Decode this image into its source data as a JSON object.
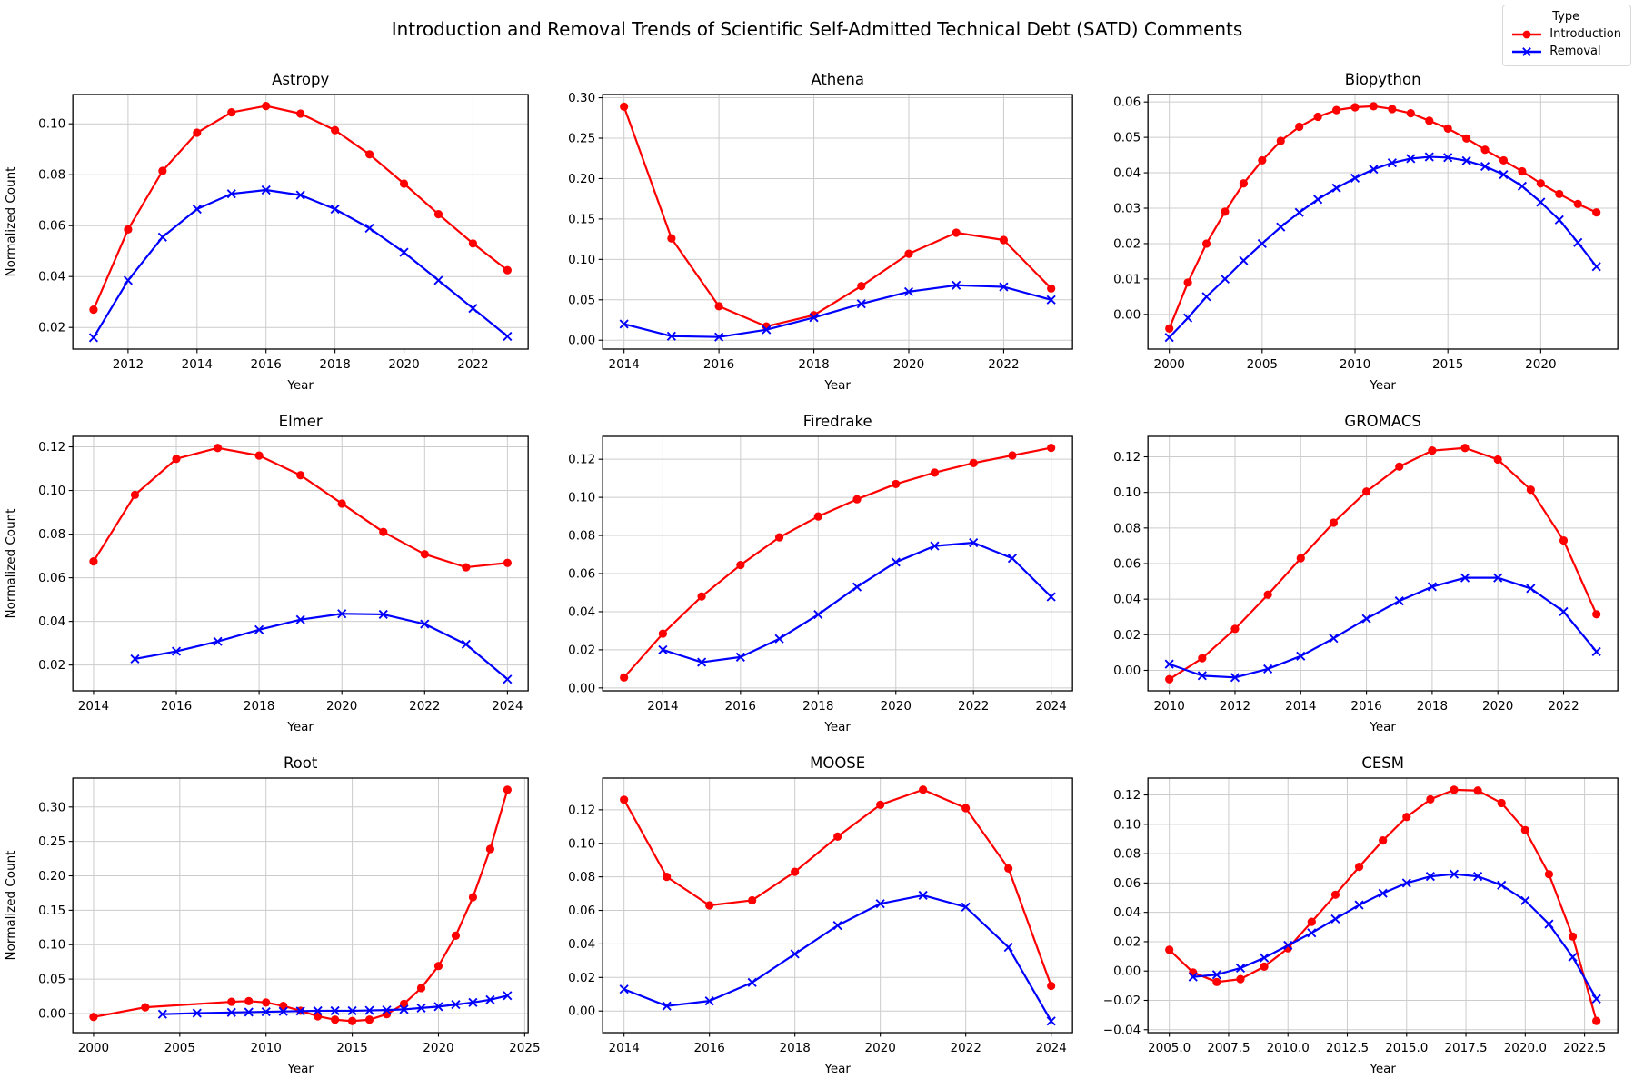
{
  "figure": {
    "title": "Introduction and Removal Trends of Scientific Self-Admitted Technical Debt (SATD) Comments",
    "legend": {
      "title": "Type",
      "entries": [
        {
          "label": "Introduction",
          "color": "#ff0000",
          "marker": "circle"
        },
        {
          "label": "Removal",
          "color": "#0000ff",
          "marker": "x"
        }
      ]
    },
    "colors": {
      "introduction": "#ff0000",
      "removal": "#0000ff",
      "grid": "#cccccc",
      "axis": "#000000"
    }
  },
  "chart_data": [
    {
      "type": "line",
      "title": "Astropy",
      "xlabel": "Year",
      "ylabel": "Normalized Count",
      "xlim": [
        2010.4,
        2023.6
      ],
      "ylim": [
        0.0115,
        0.1115
      ],
      "xticks": [
        2012,
        2014,
        2016,
        2018,
        2020,
        2022
      ],
      "xtick_labels": [
        "2012",
        "2014",
        "2016",
        "2018",
        "2020",
        "2022"
      ],
      "yticks": [
        0.02,
        0.04,
        0.06,
        0.08,
        0.1
      ],
      "ytick_labels": [
        "0.02",
        "0.04",
        "0.06",
        "0.08",
        "0.10"
      ],
      "grid": true,
      "legend_position": "figure-top-right",
      "series": [
        {
          "name": "Introduction",
          "marker": "circle",
          "x": [
            2011,
            2012,
            2013,
            2014,
            2015,
            2016,
            2017,
            2018,
            2019,
            2020,
            2021,
            2022,
            2023
          ],
          "y": [
            0.027,
            0.0585,
            0.0815,
            0.0965,
            0.1045,
            0.107,
            0.104,
            0.0975,
            0.088,
            0.0765,
            0.0645,
            0.053,
            0.0425
          ]
        },
        {
          "name": "Removal",
          "marker": "x",
          "x": [
            2011,
            2012,
            2013,
            2014,
            2015,
            2016,
            2017,
            2018,
            2019,
            2020,
            2021,
            2022,
            2023
          ],
          "y": [
            0.016,
            0.0385,
            0.0555,
            0.0665,
            0.0725,
            0.074,
            0.072,
            0.0665,
            0.059,
            0.0495,
            0.0385,
            0.0275,
            0.0165
          ]
        }
      ]
    },
    {
      "type": "line",
      "title": "Athena",
      "xlabel": "Year",
      "ylabel": "",
      "xlim": [
        2013.55,
        2023.45
      ],
      "ylim": [
        -0.011,
        0.304
      ],
      "xticks": [
        2014,
        2016,
        2018,
        2020,
        2022
      ],
      "xtick_labels": [
        "2014",
        "2016",
        "2018",
        "2020",
        "2022"
      ],
      "yticks": [
        0.0,
        0.05,
        0.1,
        0.15,
        0.2,
        0.25,
        0.3
      ],
      "ytick_labels": [
        "0.00",
        "0.05",
        "0.10",
        "0.15",
        "0.20",
        "0.25",
        "0.30"
      ],
      "grid": true,
      "series": [
        {
          "name": "Introduction",
          "marker": "circle",
          "x": [
            2014,
            2015,
            2016,
            2017,
            2018,
            2019,
            2020,
            2021,
            2022,
            2023
          ],
          "y": [
            0.289,
            0.126,
            0.042,
            0.017,
            0.031,
            0.067,
            0.107,
            0.133,
            0.124,
            0.064
          ]
        },
        {
          "name": "Removal",
          "marker": "x",
          "x": [
            2014,
            2015,
            2016,
            2017,
            2018,
            2019,
            2020,
            2021,
            2022,
            2023
          ],
          "y": [
            0.02,
            0.005,
            0.004,
            0.013,
            0.028,
            0.045,
            0.06,
            0.068,
            0.066,
            0.05
          ]
        }
      ]
    },
    {
      "type": "line",
      "title": "Biopython",
      "xlabel": "Year",
      "ylabel": "",
      "xlim": [
        1998.85,
        2024.15
      ],
      "ylim": [
        -0.0098,
        0.0621
      ],
      "xticks": [
        2000,
        2005,
        2010,
        2015,
        2020
      ],
      "xtick_labels": [
        "2000",
        "2005",
        "2010",
        "2015",
        "2020"
      ],
      "yticks": [
        0.0,
        0.01,
        0.02,
        0.03,
        0.04,
        0.05,
        0.06
      ],
      "ytick_labels": [
        "0.00",
        "0.01",
        "0.02",
        "0.03",
        "0.04",
        "0.05",
        "0.06"
      ],
      "grid": true,
      "series": [
        {
          "name": "Introduction",
          "marker": "circle",
          "x": [
            2000,
            2001,
            2002,
            2003,
            2004,
            2005,
            2006,
            2007,
            2008,
            2009,
            2010,
            2011,
            2012,
            2013,
            2014,
            2015,
            2016,
            2017,
            2018,
            2019,
            2020,
            2021,
            2022,
            2023
          ],
          "y": [
            -0.004,
            0.009,
            0.02,
            0.029,
            0.037,
            0.0435,
            0.049,
            0.053,
            0.0558,
            0.0577,
            0.0585,
            0.0588,
            0.058,
            0.0568,
            0.0547,
            0.0525,
            0.0497,
            0.0465,
            0.0435,
            0.0404,
            0.037,
            0.034,
            0.0312,
            0.0288
          ]
        },
        {
          "name": "Removal",
          "marker": "x",
          "x": [
            2000,
            2001,
            2002,
            2003,
            2004,
            2005,
            2006,
            2007,
            2008,
            2009,
            2010,
            2011,
            2012,
            2013,
            2014,
            2015,
            2016,
            2017,
            2018,
            2019,
            2020,
            2021,
            2022,
            2023
          ],
          "y": [
            -0.0065,
            -0.001,
            0.005,
            0.01,
            0.0152,
            0.02,
            0.0247,
            0.0288,
            0.0325,
            0.0357,
            0.0385,
            0.041,
            0.0428,
            0.044,
            0.0445,
            0.0443,
            0.0434,
            0.0418,
            0.0395,
            0.0362,
            0.0317,
            0.0267,
            0.0203,
            0.0135
          ]
        }
      ]
    },
    {
      "type": "line",
      "title": "Elmer",
      "xlabel": "Year",
      "ylabel": "Normalized Count",
      "xlim": [
        2013.5,
        2024.5
      ],
      "ylim": [
        0.0082,
        0.1248
      ],
      "xticks": [
        2014,
        2016,
        2018,
        2020,
        2022,
        2024
      ],
      "xtick_labels": [
        "2014",
        "2016",
        "2018",
        "2020",
        "2022",
        "2024"
      ],
      "yticks": [
        0.02,
        0.04,
        0.06,
        0.08,
        0.1,
        0.12
      ],
      "ytick_labels": [
        "0.02",
        "0.04",
        "0.06",
        "0.08",
        "0.10",
        "0.12"
      ],
      "grid": true,
      "series": [
        {
          "name": "Introduction",
          "marker": "circle",
          "x": [
            2014,
            2015,
            2016,
            2017,
            2018,
            2019,
            2020,
            2021,
            2022,
            2023,
            2024
          ],
          "y": [
            0.0675,
            0.098,
            0.1145,
            0.1195,
            0.116,
            0.107,
            0.094,
            0.081,
            0.0708,
            0.0648,
            0.0668
          ]
        },
        {
          "name": "Removal",
          "marker": "x",
          "x": [
            2015,
            2016,
            2017,
            2018,
            2019,
            2020,
            2021,
            2022,
            2023,
            2024
          ],
          "y": [
            0.0228,
            0.0263,
            0.0308,
            0.0362,
            0.0408,
            0.0435,
            0.0432,
            0.0388,
            0.0295,
            0.0135
          ]
        }
      ]
    },
    {
      "type": "line",
      "title": "Firedrake",
      "xlabel": "Year",
      "ylabel": "",
      "xlim": [
        2012.45,
        2024.55
      ],
      "ylim": [
        -0.0015,
        0.132
      ],
      "xticks": [
        2014,
        2016,
        2018,
        2020,
        2022,
        2024
      ],
      "xtick_labels": [
        "2014",
        "2016",
        "2018",
        "2020",
        "2022",
        "2024"
      ],
      "yticks": [
        0.0,
        0.02,
        0.04,
        0.06,
        0.08,
        0.1,
        0.12
      ],
      "ytick_labels": [
        "0.00",
        "0.02",
        "0.04",
        "0.06",
        "0.08",
        "0.10",
        "0.12"
      ],
      "grid": true,
      "series": [
        {
          "name": "Introduction",
          "marker": "circle",
          "x": [
            2013,
            2014,
            2015,
            2016,
            2017,
            2018,
            2019,
            2020,
            2021,
            2022,
            2023,
            2024
          ],
          "y": [
            0.0055,
            0.0285,
            0.048,
            0.0645,
            0.079,
            0.09,
            0.099,
            0.107,
            0.113,
            0.118,
            0.122,
            0.126
          ]
        },
        {
          "name": "Removal",
          "marker": "x",
          "x": [
            2014,
            2015,
            2016,
            2017,
            2018,
            2019,
            2020,
            2021,
            2022,
            2023,
            2024
          ],
          "y": [
            0.02,
            0.0135,
            0.0162,
            0.0258,
            0.0385,
            0.053,
            0.066,
            0.0745,
            0.0762,
            0.068,
            0.0478
          ]
        }
      ]
    },
    {
      "type": "line",
      "title": "GROMACS",
      "xlabel": "Year",
      "ylabel": "",
      "xlim": [
        2009.35,
        2023.65
      ],
      "ylim": [
        -0.0115,
        0.1315
      ],
      "xticks": [
        2010,
        2012,
        2014,
        2016,
        2018,
        2020,
        2022
      ],
      "xtick_labels": [
        "2010",
        "2012",
        "2014",
        "2016",
        "2018",
        "2020",
        "2022"
      ],
      "yticks": [
        0.0,
        0.02,
        0.04,
        0.06,
        0.08,
        0.1,
        0.12
      ],
      "ytick_labels": [
        "0.00",
        "0.02",
        "0.04",
        "0.06",
        "0.08",
        "0.10",
        "0.12"
      ],
      "grid": true,
      "series": [
        {
          "name": "Introduction",
          "marker": "circle",
          "x": [
            2010,
            2011,
            2012,
            2013,
            2014,
            2015,
            2016,
            2017,
            2018,
            2019,
            2020,
            2021,
            2022,
            2023
          ],
          "y": [
            -0.005,
            0.0068,
            0.0233,
            0.0425,
            0.063,
            0.083,
            0.1005,
            0.1145,
            0.1235,
            0.125,
            0.1185,
            0.1015,
            0.073,
            0.0315
          ]
        },
        {
          "name": "Removal",
          "marker": "x",
          "x": [
            2010,
            2011,
            2012,
            2013,
            2014,
            2015,
            2016,
            2017,
            2018,
            2019,
            2020,
            2021,
            2022,
            2023
          ],
          "y": [
            0.0035,
            -0.003,
            -0.004,
            0.0008,
            0.008,
            0.018,
            0.029,
            0.039,
            0.047,
            0.052,
            0.052,
            0.046,
            0.033,
            0.0105
          ]
        }
      ]
    },
    {
      "type": "line",
      "title": "Root",
      "xlabel": "Year",
      "ylabel": "Normalized Count",
      "xlim": [
        1998.8,
        2025.2
      ],
      "ylim": [
        -0.0278,
        0.342
      ],
      "xticks": [
        2000,
        2005,
        2010,
        2015,
        2020,
        2025
      ],
      "xtick_labels": [
        "2000",
        "2005",
        "2010",
        "2015",
        "2020",
        "2025"
      ],
      "yticks": [
        0.0,
        0.05,
        0.1,
        0.15,
        0.2,
        0.25,
        0.3
      ],
      "ytick_labels": [
        "0.00",
        "0.05",
        "0.10",
        "0.15",
        "0.20",
        "0.25",
        "0.30"
      ],
      "grid": true,
      "series": [
        {
          "name": "Introduction",
          "marker": "circle",
          "x": [
            2000,
            2003,
            2008,
            2009,
            2010,
            2011,
            2012,
            2013,
            2014,
            2015,
            2016,
            2017,
            2018,
            2019,
            2020,
            2021,
            2022,
            2023,
            2024
          ],
          "y": [
            -0.005,
            0.009,
            0.017,
            0.018,
            0.016,
            0.011,
            0.004,
            -0.004,
            -0.009,
            -0.011,
            -0.009,
            -0.001,
            0.014,
            0.037,
            0.069,
            0.113,
            0.169,
            0.239,
            0.325
          ]
        },
        {
          "name": "Removal",
          "marker": "x",
          "x": [
            2004,
            2006,
            2008,
            2009,
            2010,
            2011,
            2012,
            2013,
            2014,
            2015,
            2016,
            2017,
            2018,
            2019,
            2020,
            2021,
            2022,
            2023,
            2024
          ],
          "y": [
            -0.001,
            0.0005,
            0.0015,
            0.002,
            0.0025,
            0.003,
            0.0035,
            0.004,
            0.004,
            0.004,
            0.0045,
            0.005,
            0.006,
            0.008,
            0.01,
            0.013,
            0.016,
            0.02,
            0.026
          ]
        }
      ]
    },
    {
      "type": "line",
      "title": "MOOSE",
      "xlabel": "Year",
      "ylabel": "",
      "xlim": [
        2013.5,
        2024.5
      ],
      "ylim": [
        -0.0129,
        0.1389
      ],
      "xticks": [
        2014,
        2016,
        2018,
        2020,
        2022,
        2024
      ],
      "xtick_labels": [
        "2014",
        "2016",
        "2018",
        "2020",
        "2022",
        "2024"
      ],
      "yticks": [
        0.0,
        0.02,
        0.04,
        0.06,
        0.08,
        0.1,
        0.12
      ],
      "ytick_labels": [
        "0.00",
        "0.02",
        "0.04",
        "0.06",
        "0.08",
        "0.10",
        "0.12"
      ],
      "grid": true,
      "series": [
        {
          "name": "Introduction",
          "marker": "circle",
          "x": [
            2014,
            2015,
            2016,
            2017,
            2018,
            2019,
            2020,
            2021,
            2022,
            2023,
            2024
          ],
          "y": [
            0.126,
            0.08,
            0.063,
            0.066,
            0.083,
            0.104,
            0.123,
            0.132,
            0.121,
            0.085,
            0.015
          ]
        },
        {
          "name": "Removal",
          "marker": "x",
          "x": [
            2014,
            2015,
            2016,
            2017,
            2018,
            2019,
            2020,
            2021,
            2022,
            2023,
            2024
          ],
          "y": [
            0.013,
            0.003,
            0.006,
            0.017,
            0.034,
            0.051,
            0.064,
            0.069,
            0.062,
            0.038,
            -0.006
          ]
        }
      ]
    },
    {
      "type": "line",
      "title": "CESM",
      "xlabel": "Year",
      "ylabel": "",
      "xlim": [
        2004.1,
        2023.9
      ],
      "ylim": [
        -0.042,
        0.1315
      ],
      "xticks": [
        2005.0,
        2007.5,
        2010.0,
        2012.5,
        2015.0,
        2017.5,
        2020.0,
        2022.5
      ],
      "xtick_labels": [
        "2005.0",
        "2007.5",
        "2010.0",
        "2012.5",
        "2015.0",
        "2017.5",
        "2020.0",
        "2022.5"
      ],
      "yticks": [
        -0.04,
        -0.02,
        0.0,
        0.02,
        0.04,
        0.06,
        0.08,
        0.1,
        0.12
      ],
      "ytick_labels": [
        "−0.04",
        "−0.02",
        "0.00",
        "0.02",
        "0.04",
        "0.06",
        "0.08",
        "0.10",
        "0.12"
      ],
      "grid": true,
      "series": [
        {
          "name": "Introduction",
          "marker": "circle",
          "x": [
            2005,
            2006,
            2007,
            2008,
            2009,
            2010,
            2011,
            2012,
            2013,
            2014,
            2015,
            2016,
            2017,
            2018,
            2019,
            2020,
            2021,
            2022,
            2023
          ],
          "y": [
            0.0145,
            -0.001,
            -0.0075,
            -0.0055,
            0.003,
            0.0155,
            0.0335,
            0.052,
            0.071,
            0.089,
            0.105,
            0.117,
            0.1235,
            0.123,
            0.1145,
            0.096,
            0.066,
            0.0235,
            -0.034
          ]
        },
        {
          "name": "Removal",
          "marker": "x",
          "x": [
            2006,
            2007,
            2008,
            2009,
            2010,
            2011,
            2012,
            2013,
            2014,
            2015,
            2016,
            2017,
            2018,
            2019,
            2020,
            2021,
            2022,
            2023
          ],
          "y": [
            -0.004,
            -0.0025,
            0.002,
            0.009,
            0.0175,
            0.026,
            0.0355,
            0.045,
            0.053,
            0.06,
            0.0645,
            0.066,
            0.0645,
            0.0585,
            0.048,
            0.032,
            0.0095,
            -0.019
          ]
        }
      ]
    }
  ]
}
